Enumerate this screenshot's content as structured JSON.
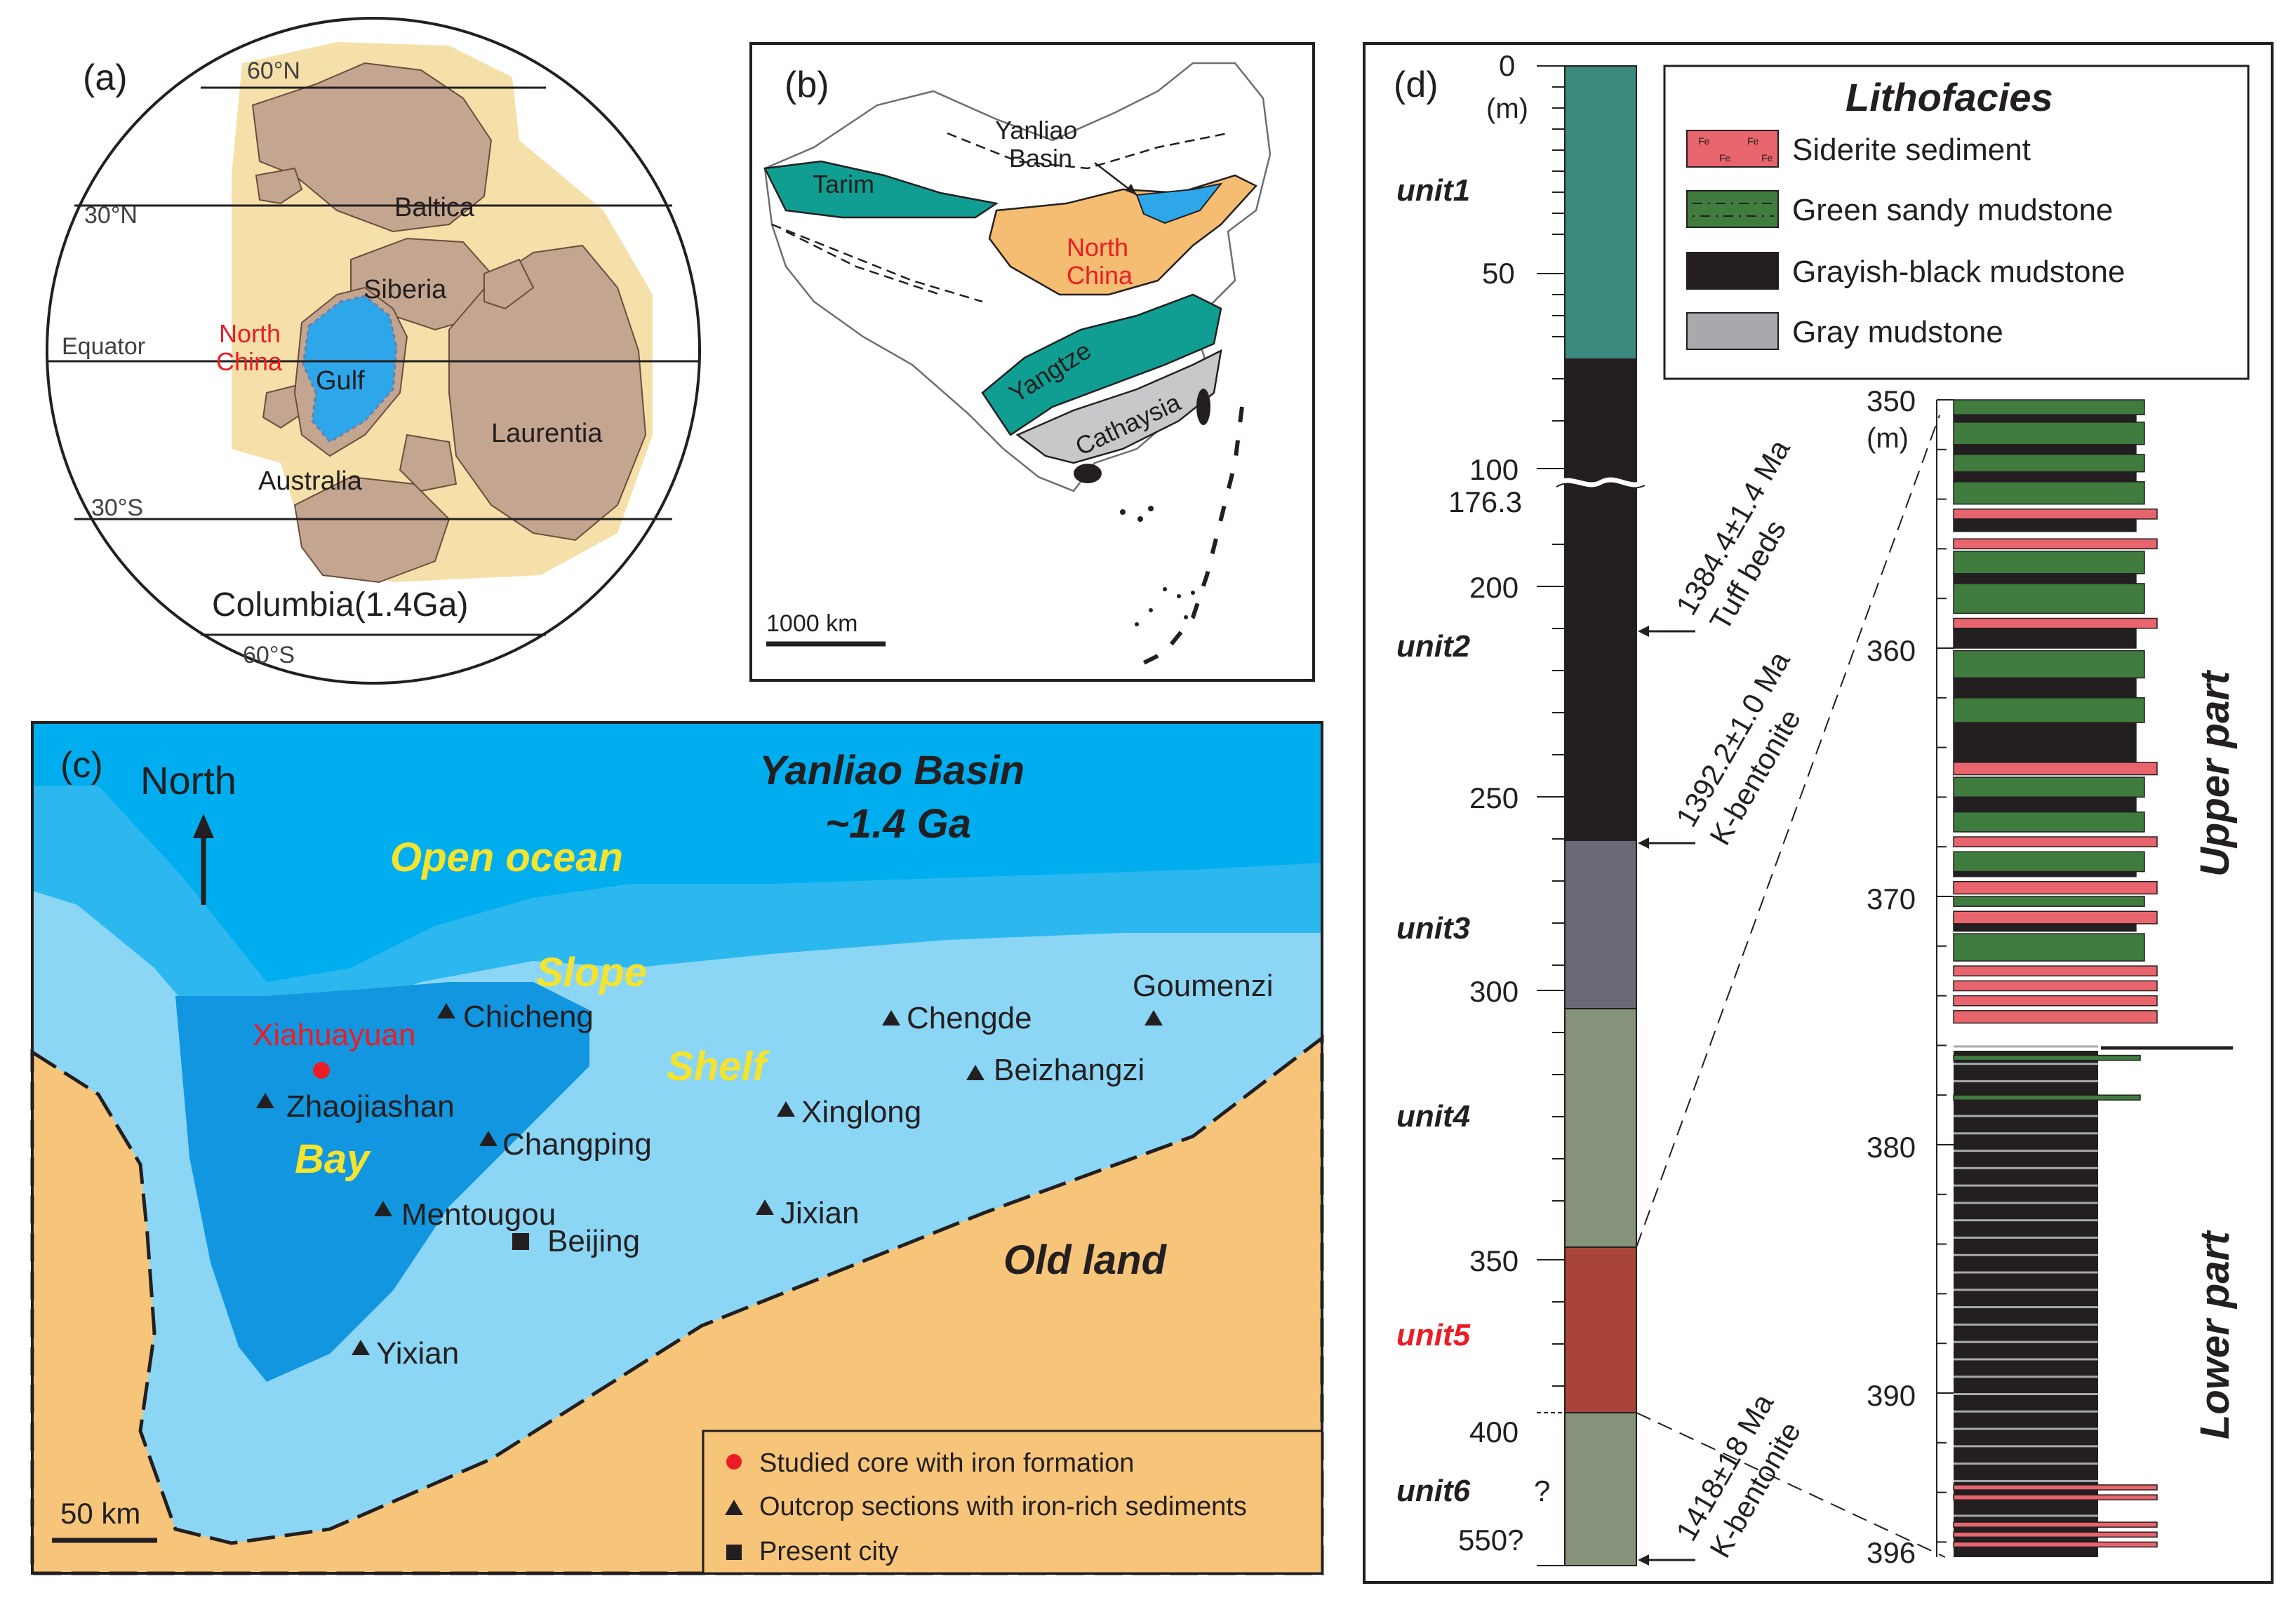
{
  "panel_a": {
    "label": "(a)",
    "lat_60n": "60°N",
    "lat_30n": "30°N",
    "equator": "Equator",
    "lat_30s": "30°S",
    "lat_60s": "60°S",
    "baltica": "Baltica",
    "siberia": "Siberia",
    "north_china_1": "North",
    "north_china_2": "China",
    "gulf": "Gulf",
    "laurentia": "Laurentia",
    "australia": "Australia",
    "caption": "Columbia(1.4Ga)"
  },
  "panel_b": {
    "label": "(b)",
    "yanliao_1": "Yanliao",
    "yanliao_2": "Basin",
    "tarim": "Tarim",
    "north_china_1": "North",
    "north_china_2": "China",
    "yangtze": "Yangtze",
    "cathaysia": "Cathaysia",
    "scale": "1000 km"
  },
  "panel_c": {
    "label": "(c)",
    "north": "North",
    "basin_title_1": "Yanliao Basin",
    "basin_title_2": "~1.4 Ga",
    "open_ocean": "Open ocean",
    "slope": "Slope",
    "shelf": "Shelf",
    "bay": "Bay",
    "old_land": "Old land",
    "core_site": "Xiahuayuan",
    "scale": "50 km",
    "outcrops": [
      "Chicheng",
      "Zhaojiashan",
      "Changping",
      "Mentougou",
      "Yixian",
      "Chengde",
      "Goumenzi",
      "Beizhangzi",
      "Xinglong",
      "Jixian"
    ],
    "city": "Beijing",
    "legend": [
      "Studied core with iron formation",
      "Outcrop sections with iron-rich sediments",
      "Present city"
    ]
  },
  "panel_d": {
    "label": "(d)",
    "unit_m": "(m)",
    "depth_ticks": [
      "0",
      "50",
      "100",
      "176.3",
      "200",
      "250",
      "300",
      "350",
      "400",
      "550?"
    ],
    "units": [
      "unit1",
      "unit2",
      "unit3",
      "unit4",
      "unit5",
      "unit6"
    ],
    "unit6_q": "?",
    "ages": [
      {
        "age": "1384.4±1.4 Ma",
        "note": "Tuff beds"
      },
      {
        "age": "1392.2±1.0 Ma",
        "note": "K-bentonite"
      },
      {
        "age": "1418±18 Ma",
        "note": "K-bentonite"
      }
    ],
    "legend_title": "Lithofacies",
    "legend": [
      "Siderite sediment",
      "Green sandy mudstone",
      "Grayish-black mudstone",
      "Gray mudstone"
    ],
    "fe_mark": "Fe",
    "detail_ticks": [
      "350",
      "360",
      "370",
      "380",
      "390",
      "396"
    ],
    "detail_unit": "(m)",
    "upper_part": "Upper part",
    "lower_part": "Lower part"
  },
  "colors": {
    "continent": "#c4a58f",
    "columbia_halo": "#f6e0aa",
    "gulf": "#2ea6ea",
    "teal": "#0f9e91",
    "north_china": "#f5bd72",
    "cathaysia": "#c7c8ca",
    "open_ocean": "#00aeef",
    "slope_zone": "#2cb8ef",
    "shelf_zone": "#8cd6f5",
    "bay_zone": "#1296e0",
    "old_land": "#f7c57a",
    "label_yellow": "#f4e42e",
    "red_label": "#ed1c24",
    "unit1": "#3a8a7e",
    "unit2": "#231f20",
    "unit3": "#6c6878",
    "unit4": "#849379",
    "unit5": "#a9443b",
    "unit6": "#849379",
    "siderite": "#e8656d",
    "green_mud": "#3f7c3e",
    "black_mud": "#231f20",
    "gray_mud": "#a7a9ac"
  }
}
